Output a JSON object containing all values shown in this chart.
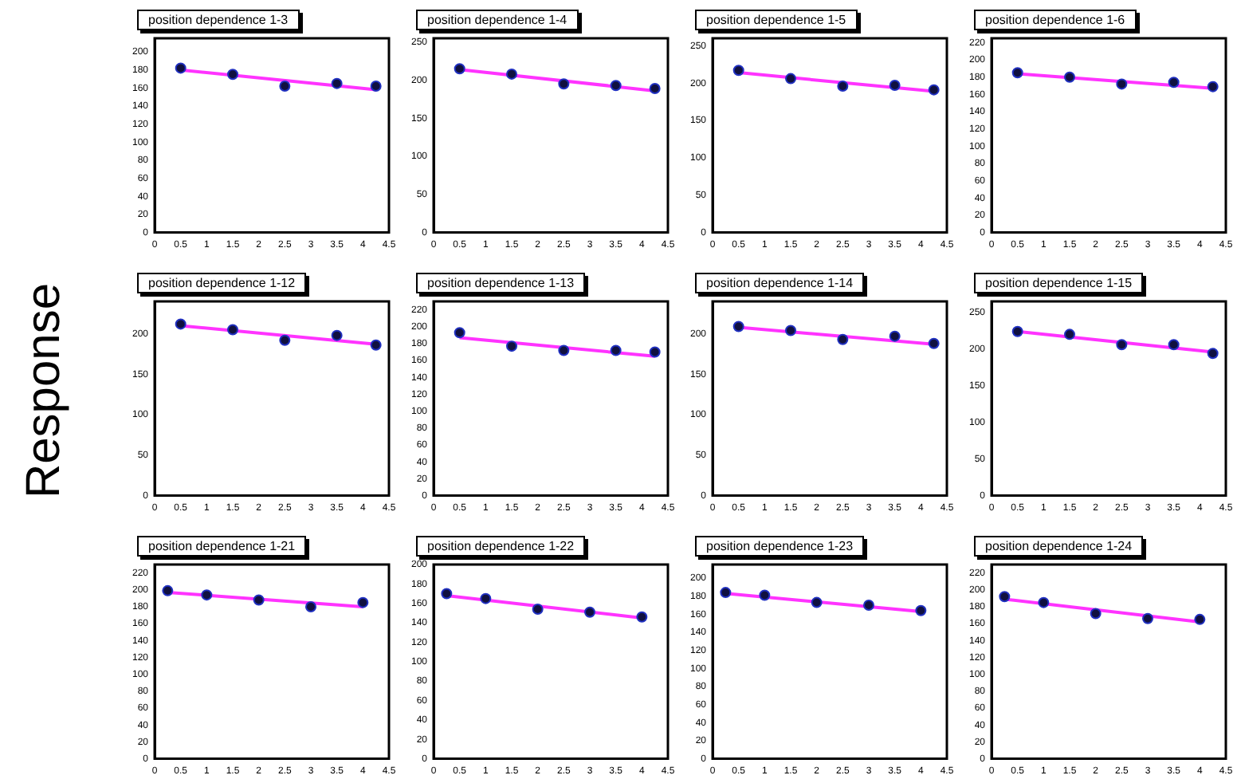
{
  "chart_data": [
    {
      "type": "scatter",
      "title": "position dependence 1-3",
      "xlim": [
        0,
        4.5
      ],
      "xticks": [
        0,
        0.5,
        1,
        1.5,
        2,
        2.5,
        3,
        3.5,
        4,
        4.5
      ],
      "ylim": [
        0,
        215
      ],
      "yticks": [
        0,
        20,
        40,
        60,
        80,
        100,
        120,
        140,
        160,
        180,
        200
      ],
      "series": [
        {
          "type": "scatter",
          "marker": "circle",
          "color": "#101040",
          "x": [
            0.5,
            1.5,
            2.5,
            3.5,
            4.25
          ],
          "values": [
            182,
            175,
            162,
            165,
            162
          ]
        },
        {
          "type": "line",
          "marker": "none",
          "color": "#ff33ff",
          "x": [
            0.5,
            4.25
          ],
          "values": [
            180,
            158
          ]
        }
      ]
    },
    {
      "type": "scatter",
      "title": "position dependence 1-4",
      "xlim": [
        0,
        4.5
      ],
      "xticks": [
        0,
        0.5,
        1,
        1.5,
        2,
        2.5,
        3,
        3.5,
        4,
        4.5
      ],
      "ylim": [
        0,
        255
      ],
      "yticks": [
        0,
        50,
        100,
        150,
        200,
        250
      ],
      "series": [
        {
          "type": "scatter",
          "marker": "circle",
          "color": "#101040",
          "x": [
            0.5,
            1.5,
            2.5,
            3.5,
            4.25
          ],
          "values": [
            215,
            208,
            195,
            193,
            189
          ]
        },
        {
          "type": "line",
          "marker": "none",
          "color": "#ff33ff",
          "x": [
            0.5,
            4.25
          ],
          "values": [
            214,
            186
          ]
        }
      ]
    },
    {
      "type": "scatter",
      "title": "position dependence 1-5",
      "xlim": [
        0,
        4.5
      ],
      "xticks": [
        0,
        0.5,
        1,
        1.5,
        2,
        2.5,
        3,
        3.5,
        4,
        4.5
      ],
      "ylim": [
        0,
        260
      ],
      "yticks": [
        0,
        50,
        100,
        150,
        200,
        250
      ],
      "series": [
        {
          "type": "scatter",
          "marker": "circle",
          "color": "#101040",
          "x": [
            0.5,
            1.5,
            2.5,
            3.5,
            4.25
          ],
          "values": [
            217,
            206,
            196,
            197,
            191
          ]
        },
        {
          "type": "line",
          "marker": "none",
          "color": "#ff33ff",
          "x": [
            0.5,
            4.25
          ],
          "values": [
            214,
            189
          ]
        }
      ]
    },
    {
      "type": "scatter",
      "title": "position dependence 1-6",
      "xlim": [
        0,
        4.5
      ],
      "xticks": [
        0,
        0.5,
        1,
        1.5,
        2,
        2.5,
        3,
        3.5,
        4,
        4.5
      ],
      "ylim": [
        0,
        225
      ],
      "yticks": [
        0,
        20,
        40,
        60,
        80,
        100,
        120,
        140,
        160,
        180,
        200,
        220
      ],
      "series": [
        {
          "type": "scatter",
          "marker": "circle",
          "color": "#101040",
          "x": [
            0.5,
            1.5,
            2.5,
            3.5,
            4.25
          ],
          "values": [
            185,
            180,
            172,
            174,
            169
          ]
        },
        {
          "type": "line",
          "marker": "none",
          "color": "#ff33ff",
          "x": [
            0.5,
            4.25
          ],
          "values": [
            184,
            167
          ]
        }
      ]
    },
    {
      "type": "scatter",
      "title": "position dependence 1-12",
      "ylabel": "Response",
      "xlim": [
        0,
        4.5
      ],
      "xticks": [
        0,
        0.5,
        1,
        1.5,
        2,
        2.5,
        3,
        3.5,
        4,
        4.5
      ],
      "ylim": [
        0,
        240
      ],
      "yticks": [
        0,
        50,
        100,
        150,
        200
      ],
      "series": [
        {
          "type": "scatter",
          "marker": "circle",
          "color": "#101040",
          "x": [
            0.5,
            1.5,
            2.5,
            3.5,
            4.25
          ],
          "values": [
            212,
            205,
            192,
            198,
            186
          ]
        },
        {
          "type": "line",
          "marker": "none",
          "color": "#ff33ff",
          "x": [
            0.5,
            4.25
          ],
          "values": [
            210,
            187
          ]
        }
      ]
    },
    {
      "type": "scatter",
      "title": "position dependence 1-13",
      "xlim": [
        0,
        4.5
      ],
      "xticks": [
        0,
        0.5,
        1,
        1.5,
        2,
        2.5,
        3,
        3.5,
        4,
        4.5
      ],
      "ylim": [
        0,
        230
      ],
      "yticks": [
        0,
        20,
        40,
        60,
        80,
        100,
        120,
        140,
        160,
        180,
        200,
        220
      ],
      "series": [
        {
          "type": "scatter",
          "marker": "circle",
          "color": "#101040",
          "x": [
            0.5,
            1.5,
            2.5,
            3.5,
            4.25
          ],
          "values": [
            193,
            177,
            172,
            172,
            170
          ]
        },
        {
          "type": "line",
          "marker": "none",
          "color": "#ff33ff",
          "x": [
            0.5,
            4.25
          ],
          "values": [
            187,
            165
          ]
        }
      ]
    },
    {
      "type": "scatter",
      "title": "position dependence 1-14",
      "xlim": [
        0,
        4.5
      ],
      "xticks": [
        0,
        0.5,
        1,
        1.5,
        2,
        2.5,
        3,
        3.5,
        4,
        4.5
      ],
      "ylim": [
        0,
        240
      ],
      "yticks": [
        0,
        50,
        100,
        150,
        200
      ],
      "series": [
        {
          "type": "scatter",
          "marker": "circle",
          "color": "#101040",
          "x": [
            0.5,
            1.5,
            2.5,
            3.5,
            4.25
          ],
          "values": [
            209,
            204,
            193,
            197,
            188
          ]
        },
        {
          "type": "line",
          "marker": "none",
          "color": "#ff33ff",
          "x": [
            0.5,
            4.25
          ],
          "values": [
            208,
            187
          ]
        }
      ]
    },
    {
      "type": "scatter",
      "title": "position dependence 1-15",
      "xlim": [
        0,
        4.5
      ],
      "xticks": [
        0,
        0.5,
        1,
        1.5,
        2,
        2.5,
        3,
        3.5,
        4,
        4.5
      ],
      "ylim": [
        0,
        265
      ],
      "yticks": [
        0,
        50,
        100,
        150,
        200,
        250
      ],
      "series": [
        {
          "type": "scatter",
          "marker": "circle",
          "color": "#101040",
          "x": [
            0.5,
            1.5,
            2.5,
            3.5,
            4.25
          ],
          "values": [
            224,
            220,
            206,
            206,
            194
          ]
        },
        {
          "type": "line",
          "marker": "none",
          "color": "#ff33ff",
          "x": [
            0.5,
            4.25
          ],
          "values": [
            224,
            196
          ]
        }
      ]
    },
    {
      "type": "scatter",
      "title": "position dependence 1-21",
      "xlim": [
        0,
        4.5
      ],
      "xticks": [
        0,
        0.5,
        1,
        1.5,
        2,
        2.5,
        3,
        3.5,
        4,
        4.5
      ],
      "ylim": [
        0,
        230
      ],
      "yticks": [
        0,
        20,
        40,
        60,
        80,
        100,
        120,
        140,
        160,
        180,
        200,
        220
      ],
      "series": [
        {
          "type": "scatter",
          "marker": "circle",
          "color": "#101040",
          "x": [
            0.25,
            1,
            2,
            3,
            4
          ],
          "values": [
            199,
            194,
            188,
            180,
            185
          ]
        },
        {
          "type": "line",
          "marker": "none",
          "color": "#ff33ff",
          "x": [
            0.25,
            4
          ],
          "values": [
            197,
            180
          ]
        }
      ]
    },
    {
      "type": "scatter",
      "title": "position dependence 1-22",
      "xlim": [
        0,
        4.5
      ],
      "xticks": [
        0,
        0.5,
        1,
        1.5,
        2,
        2.5,
        3,
        3.5,
        4,
        4.5
      ],
      "ylim": [
        0,
        200
      ],
      "yticks": [
        0,
        20,
        40,
        60,
        80,
        100,
        120,
        140,
        160,
        180,
        200
      ],
      "series": [
        {
          "type": "scatter",
          "marker": "circle",
          "color": "#101040",
          "x": [
            0.25,
            1,
            2,
            3,
            4
          ],
          "values": [
            170,
            165,
            154,
            151,
            146
          ]
        },
        {
          "type": "line",
          "marker": "none",
          "color": "#ff33ff",
          "x": [
            0.25,
            4
          ],
          "values": [
            168,
            145
          ]
        }
      ]
    },
    {
      "type": "scatter",
      "title": "position dependence 1-23",
      "xlim": [
        0,
        4.5
      ],
      "xticks": [
        0,
        0.5,
        1,
        1.5,
        2,
        2.5,
        3,
        3.5,
        4,
        4.5
      ],
      "ylim": [
        0,
        215
      ],
      "yticks": [
        0,
        20,
        40,
        60,
        80,
        100,
        120,
        140,
        160,
        180,
        200
      ],
      "series": [
        {
          "type": "scatter",
          "marker": "circle",
          "color": "#101040",
          "x": [
            0.25,
            1,
            2,
            3,
            4
          ],
          "values": [
            184,
            181,
            173,
            170,
            164
          ]
        },
        {
          "type": "line",
          "marker": "none",
          "color": "#ff33ff",
          "x": [
            0.25,
            4
          ],
          "values": [
            183,
            163
          ]
        }
      ]
    },
    {
      "type": "scatter",
      "title": "position dependence 1-24",
      "xlim": [
        0,
        4.5
      ],
      "xticks": [
        0,
        0.5,
        1,
        1.5,
        2,
        2.5,
        3,
        3.5,
        4,
        4.5
      ],
      "ylim": [
        0,
        230
      ],
      "yticks": [
        0,
        20,
        40,
        60,
        80,
        100,
        120,
        140,
        160,
        180,
        200,
        220
      ],
      "series": [
        {
          "type": "scatter",
          "marker": "circle",
          "color": "#101040",
          "x": [
            0.25,
            1,
            2,
            3,
            4
          ],
          "values": [
            192,
            185,
            172,
            166,
            165
          ]
        },
        {
          "type": "line",
          "marker": "none",
          "color": "#ff33ff",
          "x": [
            0.25,
            4
          ],
          "values": [
            189,
            162
          ]
        }
      ]
    }
  ]
}
